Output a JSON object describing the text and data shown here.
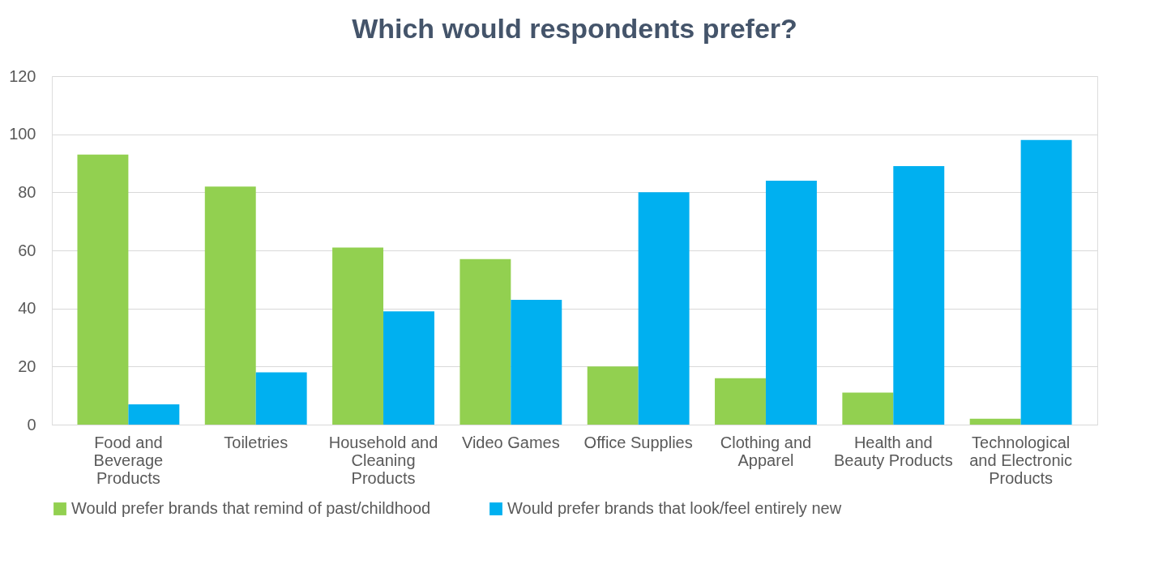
{
  "chart_data": {
    "type": "bar",
    "title": "Which would respondents prefer?",
    "categories": [
      "Food and Beverage Products",
      "Toiletries",
      "Household and Cleaning Products",
      "Video Games",
      "Office Supplies",
      "Clothing and Apparel",
      "Health and Beauty Products",
      "Technological and Electronic Products"
    ],
    "series": [
      {
        "name": "Would prefer brands that remind of past/childhood",
        "color": "#92d050",
        "values": [
          93,
          82,
          61,
          57,
          20,
          16,
          11,
          2
        ]
      },
      {
        "name": "Would prefer brands that look/feel entirely new",
        "color": "#00b0f0",
        "values": [
          7,
          18,
          39,
          43,
          80,
          84,
          89,
          98
        ]
      }
    ],
    "ylim": [
      0,
      120
    ],
    "yticks": [
      0,
      20,
      40,
      60,
      80,
      100,
      120
    ],
    "grid": "y",
    "legend": "bottom"
  }
}
